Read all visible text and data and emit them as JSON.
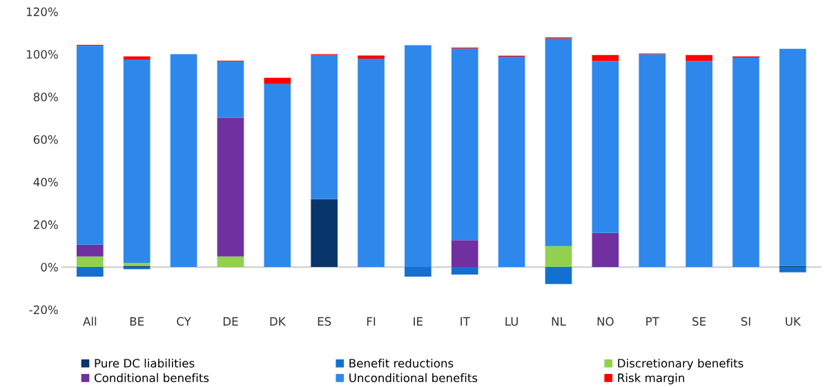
{
  "chart_data": {
    "type": "bar",
    "stacked": true,
    "categories": [
      "All",
      "BE",
      "CY",
      "DE",
      "DK",
      "ES",
      "FI",
      "IE",
      "IT",
      "LU",
      "NL",
      "NO",
      "PT",
      "SE",
      "SI",
      "UK"
    ],
    "series": [
      {
        "name": "Pure DC liabilities",
        "color": "#08366b",
        "values": [
          0,
          0.5,
          0,
          0,
          0,
          31.9,
          0,
          0,
          0,
          0,
          0,
          0,
          0,
          0,
          0,
          0.5
        ]
      },
      {
        "name": "Benefit reductions",
        "color": "#1470d0",
        "values": [
          -4.5,
          -1,
          0,
          0,
          0,
          0,
          0,
          -4.5,
          -3.5,
          0,
          -8,
          0,
          0,
          0,
          0,
          -2.5
        ]
      },
      {
        "name": "Discretionary benefits",
        "color": "#92d050",
        "values": [
          5,
          1.5,
          0,
          5,
          0,
          0,
          0,
          0,
          0,
          0,
          9.8,
          0,
          0,
          0,
          0,
          0
        ]
      },
      {
        "name": "Conditional benefits",
        "color": "#7030a0",
        "values": [
          5.5,
          0,
          0,
          65.2,
          0,
          0,
          0,
          0,
          12.6,
          0,
          0,
          16,
          0,
          0,
          0,
          0
        ]
      },
      {
        "name": "Unconditional benefits",
        "color": "#2e88ec",
        "values": [
          93.5,
          95.3,
          100,
          26.3,
          86,
          67.7,
          97.9,
          104.2,
          90.1,
          98.9,
          97.6,
          80.8,
          100,
          96.8,
          98.3,
          102
        ]
      },
      {
        "name": "Risk margin",
        "color": "#ff0000",
        "values": [
          0.4,
          1.7,
          0,
          0.4,
          2.9,
          0.4,
          1.5,
          0,
          0.4,
          0.4,
          0.5,
          2.8,
          0.3,
          2.8,
          0.7,
          0
        ]
      }
    ],
    "ylim": [
      -20,
      120
    ],
    "yticks": [
      {
        "value": -20,
        "label": "-20%"
      },
      {
        "value": 0,
        "label": "0%"
      },
      {
        "value": 20,
        "label": "20%"
      },
      {
        "value": 40,
        "label": "40%"
      },
      {
        "value": 60,
        "label": "60%"
      },
      {
        "value": 80,
        "label": "80%"
      },
      {
        "value": 100,
        "label": "100%"
      },
      {
        "value": 120,
        "label": "120%"
      }
    ],
    "legend": "bottom"
  }
}
